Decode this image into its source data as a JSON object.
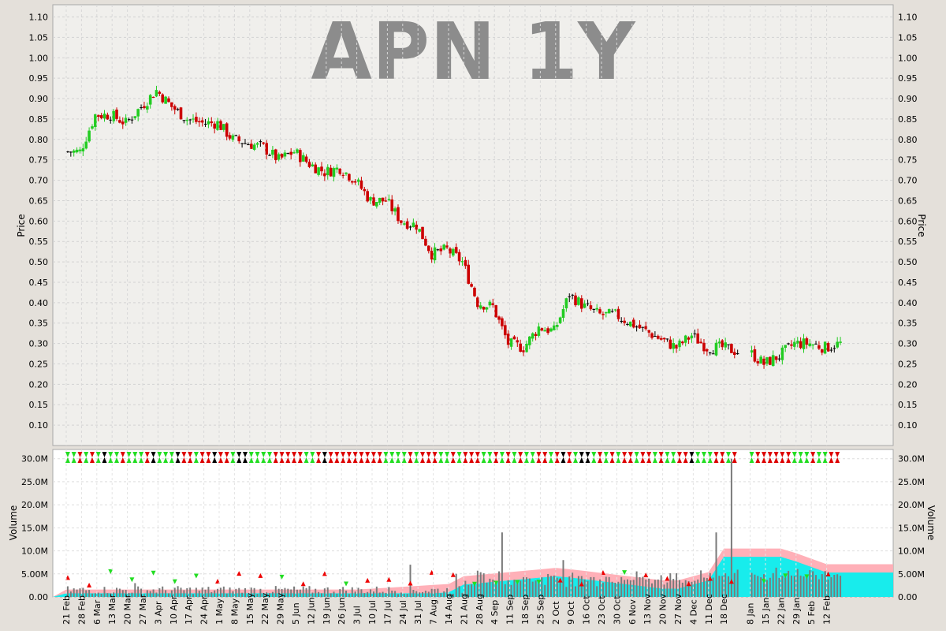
{
  "chart_data": [
    {
      "type": "candlestick",
      "title": "APN 1Y",
      "ylabel": "Price",
      "ylim": [
        0.05,
        1.13
      ],
      "yticks": [
        0.1,
        0.15,
        0.2,
        0.25,
        0.3,
        0.35,
        0.4,
        0.45,
        0.5,
        0.55,
        0.6,
        0.65,
        0.7,
        0.75,
        0.8,
        0.85,
        0.9,
        0.95,
        1.0,
        1.05,
        1.1
      ],
      "grid": true,
      "x_tick_labels": [
        "21 Feb",
        "28 Feb",
        "6 Mar",
        "13 Mar",
        "20 Mar",
        "27 Mar",
        "3 Apr",
        "10 Apr",
        "17 Apr",
        "24 Apr",
        "1 May",
        "8 May",
        "15 May",
        "22 May",
        "29 May",
        "5 Jun",
        "12 Jun",
        "19 Jun",
        "26 Jun",
        "3 Jul",
        "10 Jul",
        "17 Jul",
        "24 Jul",
        "31 Jul",
        "7 Aug",
        "14 Aug",
        "21 Aug",
        "28 Aug",
        "4 Sep",
        "11 Sep",
        "18 Sep",
        "25 Sep",
        "2 Oct",
        "9 Oct",
        "16 Oct",
        "23 Oct",
        "30 Oct",
        "6 Nov",
        "13 Nov",
        "20 Nov",
        "27 Nov",
        "4 Dec",
        "11 Dec",
        "18 Dec",
        "8 Jan",
        "15 Jan",
        "22 Jan",
        "29 Jan",
        "5 Feb",
        "12 Feb"
      ],
      "weekly_close": [
        0.77,
        0.86,
        0.86,
        0.84,
        0.88,
        0.92,
        0.88,
        0.85,
        0.84,
        0.84,
        0.8,
        0.79,
        0.78,
        0.75,
        0.77,
        0.74,
        0.72,
        0.73,
        0.7,
        0.65,
        0.65,
        0.6,
        0.59,
        0.52,
        0.53,
        0.5,
        0.4,
        0.39,
        0.3,
        0.29,
        0.34,
        0.33,
        0.42,
        0.39,
        0.37,
        0.37,
        0.35,
        0.33,
        0.31,
        0.29,
        0.32,
        0.29,
        0.29,
        0.28,
        0.25,
        0.27,
        0.3,
        0.3,
        0.29,
        0.3
      ]
    },
    {
      "type": "bar",
      "ylabel": "Volume",
      "ylim": [
        0,
        32
      ],
      "yticks": [
        "0.00",
        "5.00M",
        "10.0M",
        "15.0M",
        "20.0M",
        "25.0M",
        "30.0M"
      ],
      "grid": true,
      "volume_spikes_m": [
        {
          "date": "20 Mar",
          "value": 3.0
        },
        {
          "date": "10 Apr",
          "value": 2.0
        },
        {
          "date": "24 Jul",
          "value": 7.0
        },
        {
          "date": "14 Aug",
          "value": 5.0
        },
        {
          "date": "4 Sep",
          "value": 14.0
        },
        {
          "date": "2 Oct",
          "value": 8.0
        },
        {
          "date": "11 Dec",
          "value": 14.0
        },
        {
          "date": "18 Dec",
          "value": 30.0
        }
      ]
    }
  ]
}
